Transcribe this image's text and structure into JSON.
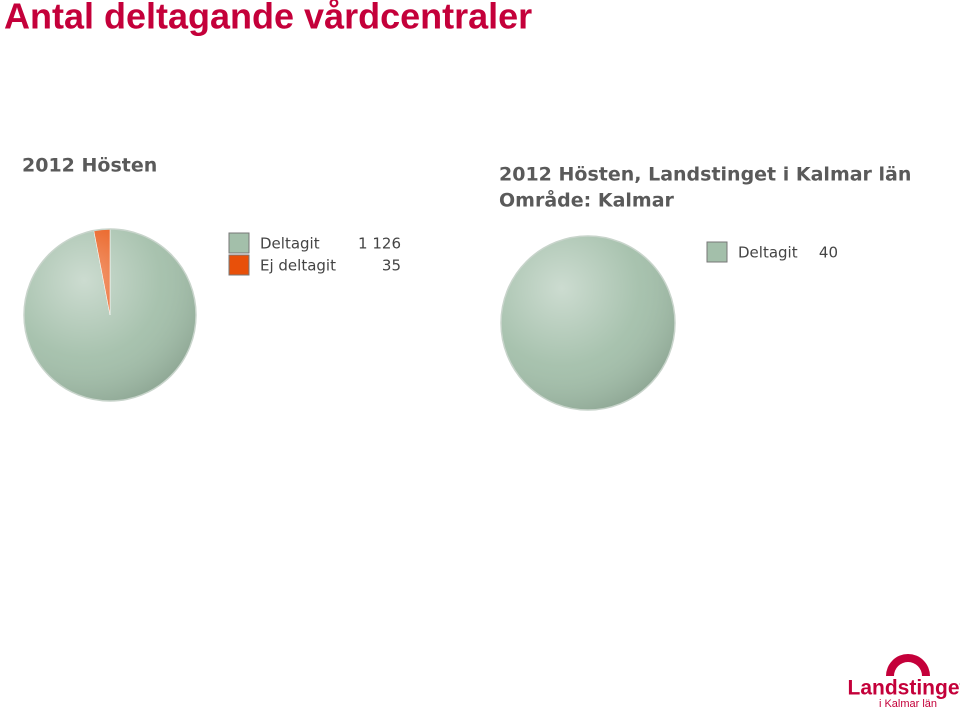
{
  "slide_title": "Antal deltagande vårdcentraler",
  "logo": {
    "name": "Landstinget",
    "region": "i Kalmar län"
  },
  "chart_data": [
    {
      "type": "pie",
      "title": "2012 Hösten",
      "categories": [
        "Deltagit",
        "Ej deltagit"
      ],
      "values": [
        1126,
        35
      ],
      "value_labels": [
        "1 126",
        "35"
      ],
      "colors": [
        "#a3bfaa",
        "#e8500a"
      ]
    },
    {
      "type": "pie",
      "title": "2012 Hösten, Landstinget i Kalmar län",
      "subtitle": "Område: Kalmar",
      "categories": [
        "Deltagit"
      ],
      "values": [
        40
      ],
      "colors": [
        "#a3bfaa"
      ]
    }
  ]
}
